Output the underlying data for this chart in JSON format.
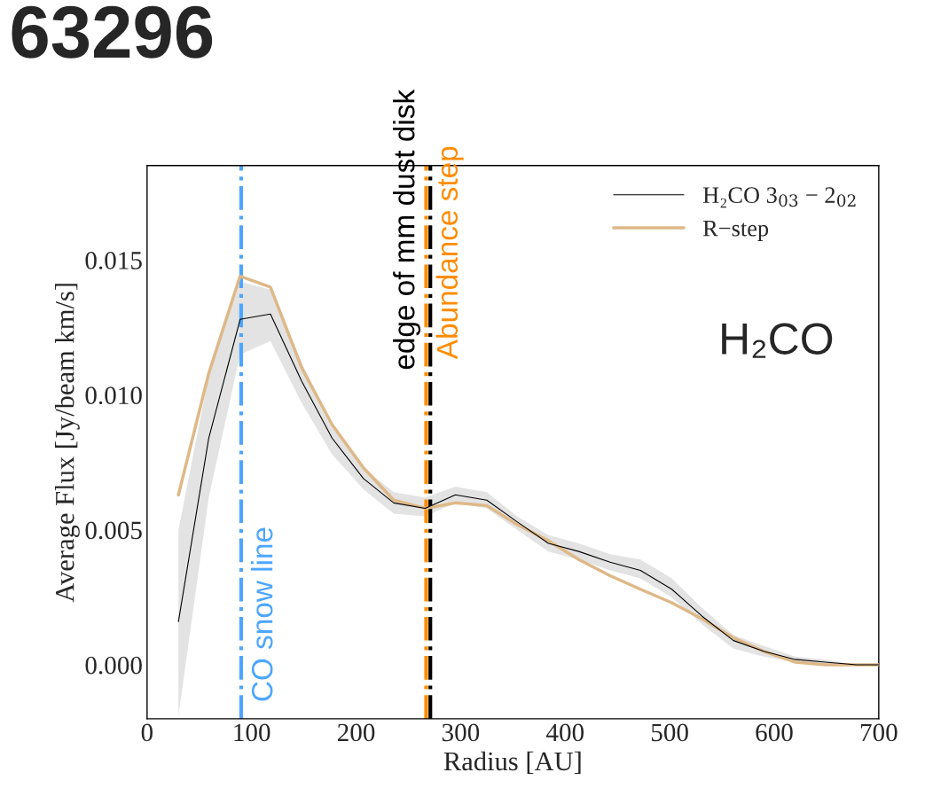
{
  "chart_data": {
    "type": "line",
    "x": [
      30,
      59,
      89,
      118,
      148,
      177,
      207,
      236,
      266,
      295,
      325,
      354,
      384,
      413,
      443,
      472,
      502,
      531,
      561,
      590,
      620,
      649,
      679,
      700
    ],
    "series": [
      {
        "name": "H₂CO 3$_{03}$ − 2$_{02}$",
        "color": "#000000",
        "values": [
          0.0016,
          0.0084,
          0.0128,
          0.013,
          0.0105,
          0.0084,
          0.0069,
          0.006,
          0.0058,
          0.0063,
          0.0061,
          0.0053,
          0.0045,
          0.0042,
          0.0038,
          0.0035,
          0.0028,
          0.0018,
          0.0009,
          0.0005,
          0.0002,
          0.0001,
          0.0,
          0.0
        ],
        "lower": [
          -0.0019,
          0.0062,
          0.0115,
          0.012,
          0.0097,
          0.0078,
          0.0065,
          0.0056,
          0.0055,
          0.006,
          0.0058,
          0.005,
          0.0042,
          0.0039,
          0.0035,
          0.0032,
          0.0025,
          0.0015,
          0.0006,
          0.0003,
          0.0001,
          0.0,
          0.0,
          0.0
        ],
        "upper": [
          0.005,
          0.0107,
          0.0142,
          0.0139,
          0.0112,
          0.0088,
          0.0073,
          0.0064,
          0.0062,
          0.0066,
          0.0064,
          0.0055,
          0.0048,
          0.0045,
          0.0041,
          0.0039,
          0.0032,
          0.0021,
          0.0011,
          0.0007,
          0.0003,
          0.0002,
          0.0,
          0.0
        ]
      },
      {
        "name": "R−step",
        "color": "#deb887",
        "values": [
          0.0063,
          0.0108,
          0.0144,
          0.014,
          0.011,
          0.0089,
          0.0073,
          0.0061,
          0.0058,
          0.006,
          0.0059,
          0.0052,
          0.0046,
          0.0039,
          0.0033,
          0.0028,
          0.0023,
          0.0017,
          0.001,
          0.0005,
          0.0001,
          0.0,
          0.0,
          0.0
        ]
      }
    ],
    "xlim": [
      0,
      700
    ],
    "ylim": [
      -0.002,
      0.0185
    ],
    "xticks": [
      0,
      100,
      200,
      300,
      400,
      500,
      600,
      700
    ],
    "yticks": [
      {
        "value": 0,
        "label": "0.000"
      },
      {
        "value": 0.005,
        "label": "0.005"
      },
      {
        "value": 0.01,
        "label": "0.010"
      },
      {
        "value": 0.015,
        "label": "0.015"
      }
    ],
    "xlabel": "Radius [AU]",
    "ylabel": "Average Flux [Jy/beam km/s]",
    "ref_lines": [
      {
        "axis": "x",
        "value": 90,
        "label": "CO snow line",
        "color": "#4da6ff",
        "line_style": "dashdot"
      },
      {
        "axis": "x",
        "value": 271,
        "label": "edge of mm dust disk",
        "color": "#000000",
        "line_style": "dashdot"
      },
      {
        "axis": "x",
        "value": 267,
        "label": "Abundance step",
        "color": "#ff8c00",
        "line_style": "dashdot"
      }
    ],
    "annotations": [
      "63296",
      "H₂CO"
    ],
    "legend": "top right"
  }
}
